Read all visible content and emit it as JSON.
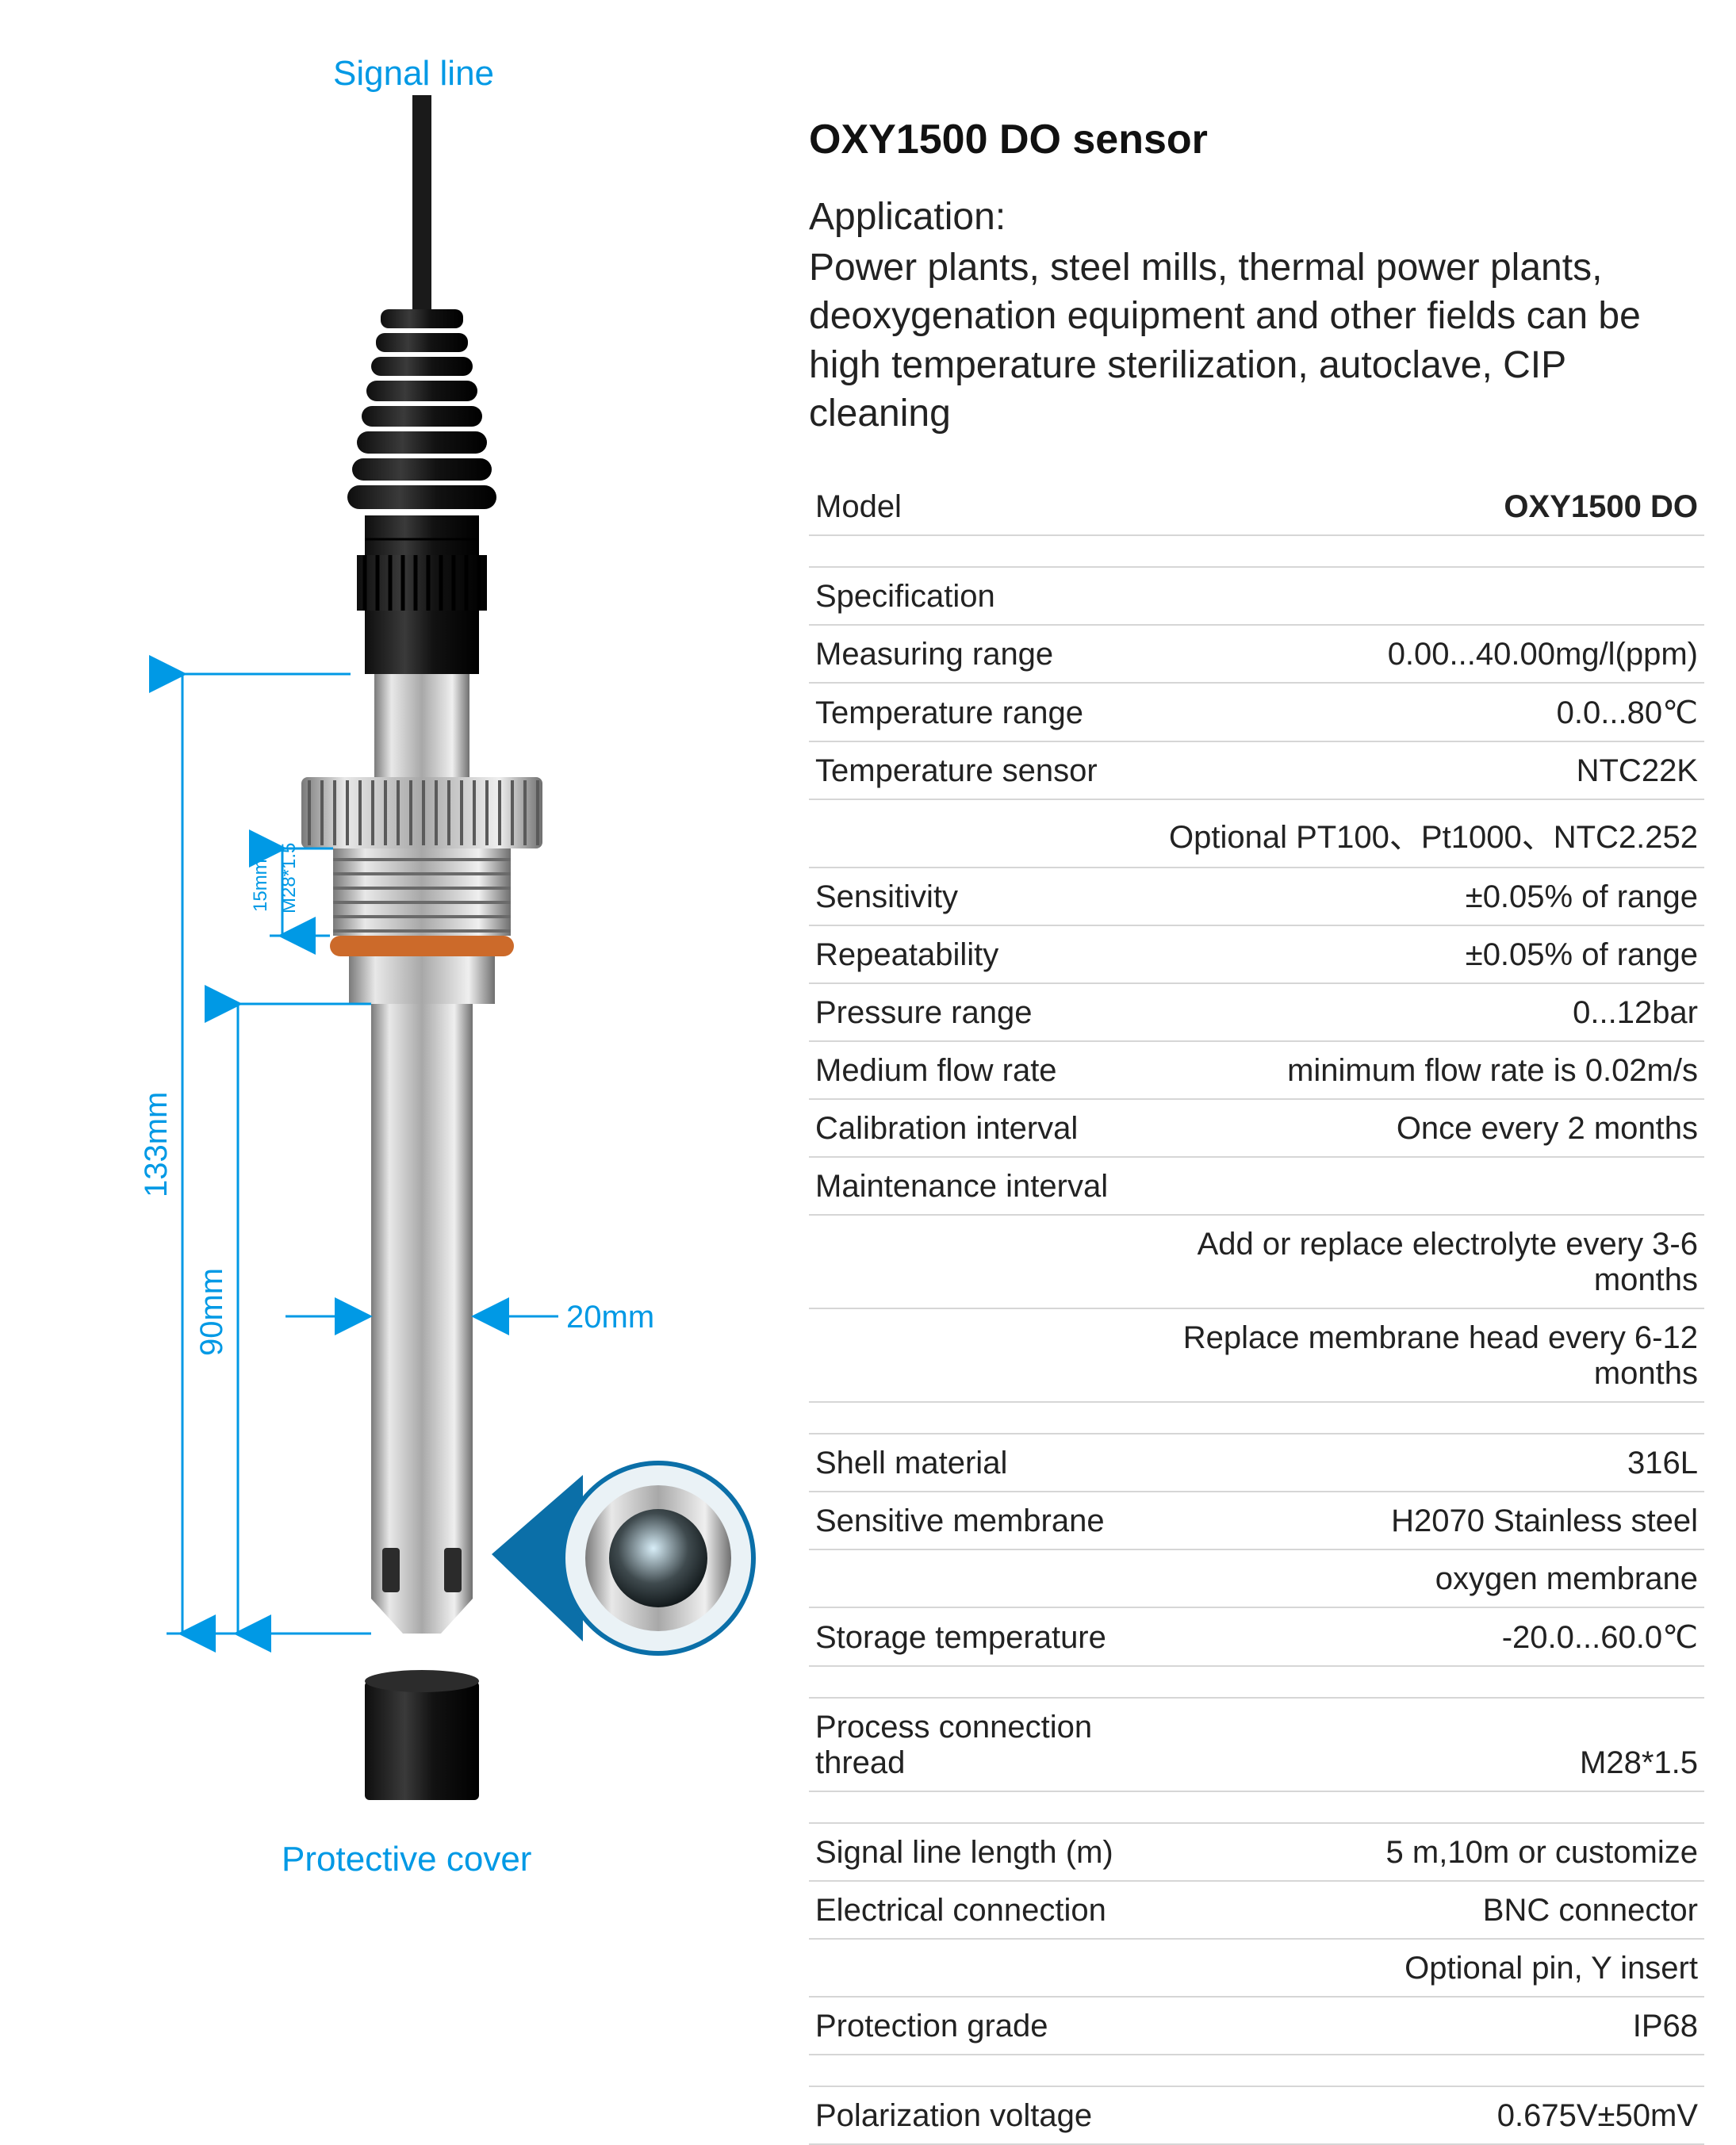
{
  "colors": {
    "accent": "#0099e5",
    "text": "#222222",
    "rule": "#d6d6d6",
    "metal_light": "#e8e8e8",
    "metal_mid": "#bfbfbf",
    "metal_dark": "#6f6f6f",
    "black": "#1a1a1a",
    "oring": "#cc6a2a",
    "callout_fill": "#0b6fa8"
  },
  "diagram": {
    "signal_label": "Signal line",
    "protective_label": "Protective cover",
    "dim_total": "133mm",
    "dim_lower": "90mm",
    "dim_thread": "15mm",
    "thread_spec": "M28*1.5",
    "dim_width": "20mm"
  },
  "title": "OXY1500 DO  sensor",
  "application": {
    "heading": "Application:",
    "body": "Power plants, steel mills, thermal power plants, deoxygenation equipment and other fields can be high temperature sterilization, autoclave, CIP cleaning"
  },
  "specs": [
    {
      "k": "Model",
      "v": "OXY1500 DO",
      "bold": true
    },
    {
      "gap": true
    },
    {
      "k": "Specification",
      "v": ""
    },
    {
      "k": "Measuring range",
      "v": "0.00...40.00mg/l(ppm)"
    },
    {
      "k": "Temperature range",
      "v": "0.0...80℃"
    },
    {
      "k": "Temperature sensor",
      "v": "NTC22K"
    },
    {
      "k": "",
      "v": "Optional PT100、Pt1000、NTC2.252"
    },
    {
      "k": "Sensitivity",
      "v": "±0.05% of range"
    },
    {
      "k": "Repeatability",
      "v": "±0.05% of range"
    },
    {
      "k": "Pressure range",
      "v": "0...12bar"
    },
    {
      "k": "Medium flow rate",
      "v": "minimum flow rate is 0.02m/s"
    },
    {
      "k": "Calibration interval",
      "v": "Once every 2 months"
    },
    {
      "k": "Maintenance interval",
      "v": ""
    },
    {
      "k": "",
      "v": "Add or replace electrolyte every 3-6 months"
    },
    {
      "k": "",
      "v": "Replace membrane head every 6-12 months"
    },
    {
      "gap": true
    },
    {
      "k": "Shell material",
      "v": "316L"
    },
    {
      "k": "Sensitive membrane",
      "v": "H2070 Stainless steel"
    },
    {
      "k": "",
      "v": "oxygen membrane"
    },
    {
      "k": "Storage temperature",
      "v": "-20.0...60.0℃"
    },
    {
      "gap": true
    },
    {
      "k": "Process connection thread",
      "v": "M28*1.5"
    },
    {
      "gap": true
    },
    {
      "k": "Signal line length (m)",
      "v": "5 m,10m or customize"
    },
    {
      "k": "Electrical connection",
      "v": "BNC connector"
    },
    {
      "k": "",
      "v": "Optional pin, Y insert"
    },
    {
      "k": "Protection grade",
      "v": "IP68"
    },
    {
      "gap": true
    },
    {
      "k": "Polarization voltage",
      "v": "0.675V±50mV"
    }
  ],
  "fontsize": {
    "title": 52,
    "body": 48,
    "table": 40,
    "dim": 40,
    "dim_sm": 24
  }
}
